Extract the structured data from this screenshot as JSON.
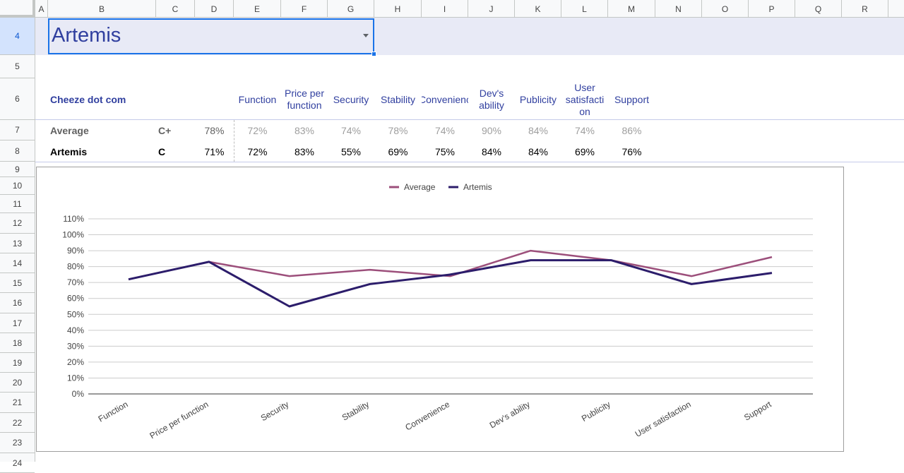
{
  "columns": [
    "A",
    "B",
    "C",
    "D",
    "E",
    "F",
    "G",
    "H",
    "I",
    "J",
    "K",
    "L",
    "M",
    "N",
    "O",
    "P",
    "Q",
    "R"
  ],
  "rows": [
    "4",
    "5",
    "6",
    "7",
    "8",
    "9",
    "10",
    "11",
    "12",
    "13",
    "14",
    "15",
    "16",
    "17",
    "18",
    "19",
    "20",
    "21",
    "22",
    "23",
    "24"
  ],
  "selector": {
    "value": "Artemis"
  },
  "table": {
    "company": "Cheeze dot com",
    "headers": [
      "Function",
      "Price per function",
      "Security",
      "Stability",
      "Convenience",
      "Dev's ability",
      "Publicity",
      "User satisfaction",
      "Support"
    ],
    "header_display": [
      "Function",
      "Price per\nfunction",
      "Security",
      "Stability",
      "Convenienc",
      "Dev's\nability",
      "Publicity",
      "User\nsatisfacti\non",
      "Support"
    ],
    "average": {
      "label": "Average",
      "grade": "C+",
      "overall": "78%",
      "values": [
        "72%",
        "83%",
        "74%",
        "78%",
        "74%",
        "90%",
        "84%",
        "74%",
        "86%"
      ]
    },
    "artemis": {
      "label": "Artemis",
      "grade": "C",
      "overall": "71%",
      "values": [
        "72%",
        "83%",
        "55%",
        "69%",
        "75%",
        "84%",
        "84%",
        "69%",
        "76%"
      ]
    }
  },
  "chart_data": {
    "type": "line",
    "categories": [
      "Function",
      "Price per function",
      "Security",
      "Stability",
      "Convenience",
      "Dev's ability",
      "Publicity",
      "User satisfaction",
      "Support"
    ],
    "series": [
      {
        "name": "Average",
        "color": "#9c4f7b",
        "values": [
          72,
          83,
          74,
          78,
          74,
          90,
          84,
          74,
          86
        ]
      },
      {
        "name": "Artemis",
        "color": "#2c1d6b",
        "values": [
          72,
          83,
          55,
          69,
          75,
          84,
          84,
          69,
          76
        ]
      }
    ],
    "yticks": [
      "0%",
      "10%",
      "20%",
      "30%",
      "40%",
      "50%",
      "60%",
      "70%",
      "80%",
      "90%",
      "100%",
      "110%"
    ],
    "ylim": [
      0,
      110
    ],
    "legend": "top-center",
    "grid": true
  }
}
